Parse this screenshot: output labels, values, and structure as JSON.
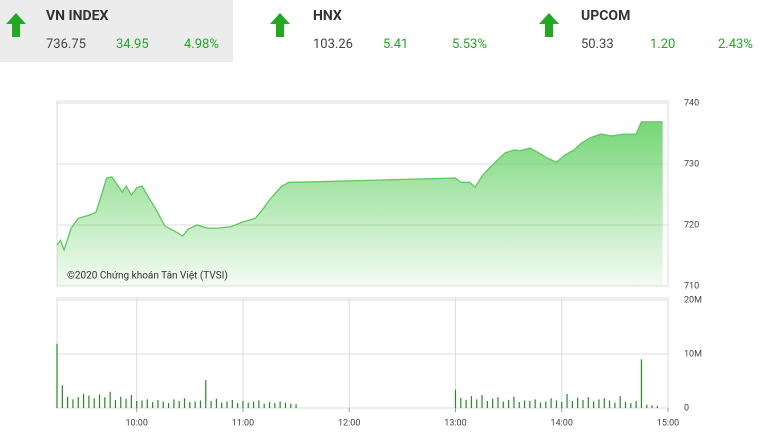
{
  "tickers": [
    {
      "name": "VN INDEX",
      "value": "736.75",
      "change": "34.95",
      "percent": "4.98%"
    },
    {
      "name": "HNX",
      "value": "103.26",
      "change": "5.41",
      "percent": "5.53%"
    },
    {
      "name": "UPCOM",
      "value": "50.33",
      "change": "1.20",
      "percent": "2.43%"
    }
  ],
  "chart_data": [
    {
      "type": "area",
      "annotation": "©2020 Chứng khoán Tân Việt (TVSI)",
      "color": "#5cc95c",
      "x": [
        555,
        557,
        559,
        563,
        567,
        573,
        577,
        581,
        583,
        586,
        589,
        592,
        594,
        597,
        600,
        603,
        607,
        611,
        616,
        622,
        626,
        629,
        634,
        640,
        646,
        653,
        660,
        667,
        671,
        675,
        678,
        682,
        686,
        690,
        780,
        783,
        788,
        791,
        795,
        799,
        804,
        808,
        813,
        817,
        822,
        826,
        831,
        837,
        842,
        847,
        851,
        856,
        862,
        868,
        875,
        882,
        885,
        897
      ],
      "values": [
        716.7,
        717.5,
        715.9,
        719.5,
        721.1,
        721.6,
        722.1,
        725.7,
        727.7,
        727.9,
        726.6,
        725.4,
        726.4,
        724.9,
        726.1,
        726.4,
        724.4,
        722.5,
        719.8,
        718.9,
        718.2,
        719.3,
        720,
        719.5,
        719.5,
        719.7,
        720.5,
        721.1,
        722.5,
        724.1,
        725.1,
        726.4,
        727,
        727,
        727.7,
        727,
        727,
        726.2,
        728,
        729.3,
        730.7,
        731.8,
        732.3,
        732.2,
        732.6,
        732,
        731.1,
        730.3,
        731.5,
        732.3,
        733.4,
        734.3,
        734.9,
        734.6,
        734.9,
        734.9,
        736.9,
        736.9
      ],
      "xlim": [
        555,
        900
      ],
      "ylim": [
        710,
        740
      ],
      "yticks": [
        740,
        730,
        720,
        710
      ],
      "grid": true
    },
    {
      "type": "bar",
      "color": "#1f8f1f",
      "x": [
        555,
        558,
        561,
        564,
        567,
        570,
        573,
        576,
        579,
        582,
        585,
        588,
        591,
        594,
        597,
        600,
        603,
        606,
        609,
        612,
        615,
        618,
        621,
        624,
        627,
        630,
        633,
        636,
        639,
        642,
        645,
        648,
        651,
        654,
        657,
        660,
        663,
        666,
        669,
        672,
        675,
        678,
        681,
        684,
        687,
        690,
        780,
        783,
        786,
        789,
        792,
        795,
        798,
        801,
        804,
        807,
        810,
        813,
        816,
        819,
        822,
        825,
        828,
        831,
        834,
        837,
        840,
        843,
        846,
        849,
        852,
        855,
        858,
        861,
        864,
        867,
        870,
        873,
        876,
        879,
        882,
        885,
        888,
        891,
        894
      ],
      "values": [
        11.9,
        4.2,
        2.1,
        1.6,
        2.0,
        2.6,
        2.3,
        1.8,
        2.5,
        2.0,
        3.0,
        1.5,
        2.1,
        1.7,
        2.4,
        1.3,
        1.4,
        1.6,
        1.1,
        1.5,
        1.2,
        0.9,
        1.6,
        1.3,
        1.8,
        1.1,
        1.2,
        1.4,
        5.2,
        1.3,
        1.7,
        1.0,
        1.2,
        1.5,
        0.9,
        1.3,
        1.0,
        1.2,
        1.4,
        0.8,
        1.1,
        0.9,
        1.2,
        1.0,
        0.8,
        0.7,
        3.4,
        1.9,
        1.5,
        2.2,
        1.6,
        2.4,
        1.3,
        1.7,
        2.0,
        1.2,
        1.5,
        2.1,
        1.1,
        1.4,
        1.3,
        1.6,
        1.0,
        1.2,
        1.8,
        1.4,
        1.1,
        2.6,
        1.3,
        1.9,
        1.5,
        2.0,
        1.2,
        1.6,
        1.8,
        1.4,
        1.0,
        2.2,
        1.1,
        0.9,
        1.3,
        9.0,
        0.6,
        0.5,
        0.4
      ],
      "xlim": [
        555,
        900
      ],
      "ylim": [
        0,
        20
      ],
      "yticks": [
        {
          "value": 20,
          "label": "20M"
        },
        {
          "value": 10,
          "label": "10M"
        },
        0
      ],
      "xticks": [
        {
          "value": 600,
          "label": "10:00"
        },
        {
          "value": 660,
          "label": "11:00"
        },
        {
          "value": 720,
          "label": "12:00"
        },
        {
          "value": 780,
          "label": "13:00"
        },
        {
          "value": 840,
          "label": "14:00"
        },
        {
          "value": 900,
          "label": "15:00"
        }
      ],
      "grid": true
    }
  ]
}
